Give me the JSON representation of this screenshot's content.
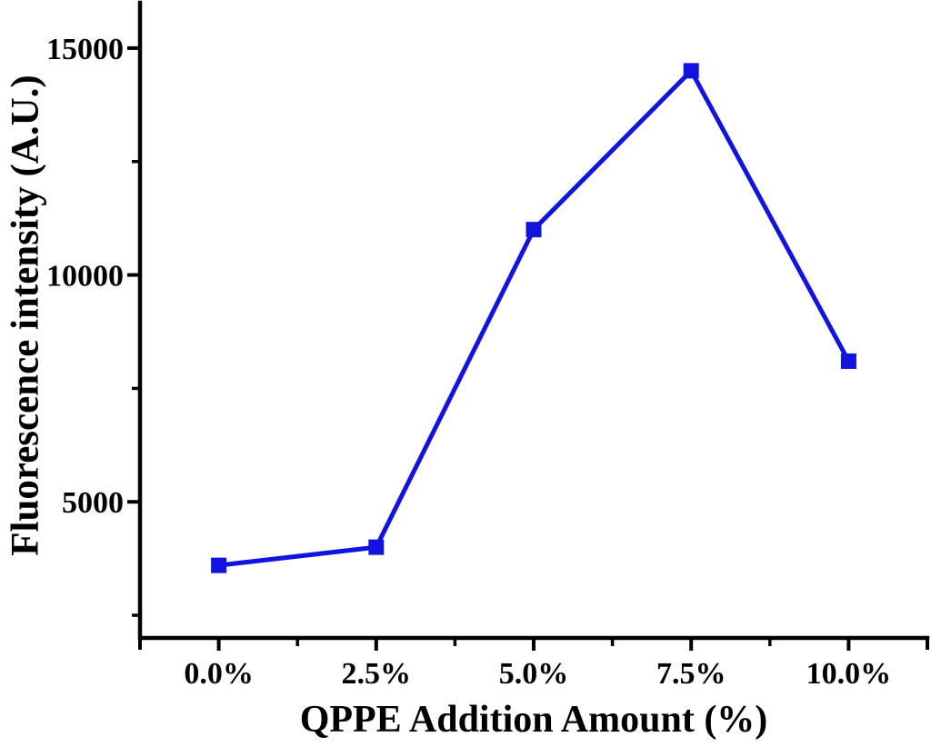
{
  "chart_data": {
    "type": "line",
    "title": "",
    "xlabel": "QPPE Addition Amount (%)",
    "ylabel": "Fluorescence intensity (A.U.)",
    "x": [
      0.0,
      2.5,
      5.0,
      7.5,
      10.0
    ],
    "x_tick_labels": [
      "0.0%",
      "2.5%",
      "5.0%",
      "7.5%",
      "10.0%"
    ],
    "series": [
      {
        "name": "Fluorescence intensity",
        "values": [
          3600,
          4000,
          11000,
          14500,
          8100
        ]
      }
    ],
    "xlim": [
      -1.25,
      11.25
    ],
    "ylim": [
      2000,
      16000
    ],
    "y_major_ticks": [
      5000,
      10000,
      15000
    ],
    "y_tick_labels": [
      "5000",
      "10000",
      "15000"
    ],
    "y_minor_ticks": [
      2500,
      7500,
      12500
    ],
    "x_minor_ticks": [
      1.25,
      3.75,
      6.25,
      8.75
    ],
    "grid": false,
    "legend": null,
    "marker": "square",
    "line_color": "#1313e0",
    "axis_color": "#000000",
    "text_color": "#000000"
  }
}
